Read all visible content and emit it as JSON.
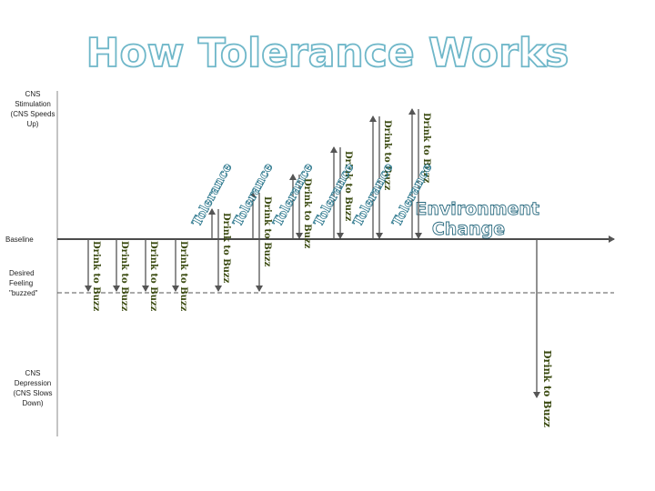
{
  "title": "How Tolerance Works",
  "side_labels": {
    "stimulation": "CNS Stimulation (CNS Speeds Up)",
    "baseline": "Baseline",
    "desired": "Desired Feeling \"buzzed\"",
    "depression": "CNS Depression (CNS Slows Down)"
  },
  "initial_drinks": [
    "Drink to Buzz",
    "Drink to Buzz",
    "Drink to Buzz",
    "Drink to Buzz"
  ],
  "tolerance_steps": [
    {
      "tolerance": "Tolerance",
      "drink": "Drink to Buzz"
    },
    {
      "tolerance": "Tolerance",
      "drink": "Drink to Buzz"
    },
    {
      "tolerance": "Tolerance",
      "drink": "Drink to Buzz"
    },
    {
      "tolerance": "Tolerance",
      "drink": "Drink to Buzz"
    },
    {
      "tolerance": "Tolerance",
      "drink": "Drink to Buzz"
    },
    {
      "tolerance": "Tolerance",
      "drink": "Drink to Buzz"
    }
  ],
  "environment_change": "Environment Change",
  "final_drink": "Drink to Buzz"
}
